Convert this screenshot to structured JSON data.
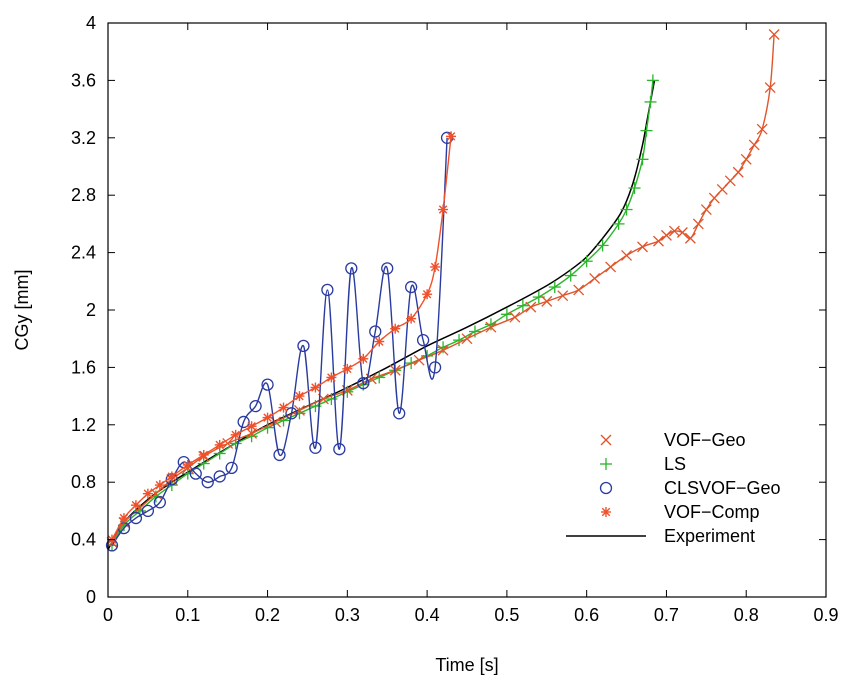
{
  "chart_data": {
    "type": "line",
    "title": "",
    "xlabel": "Time [s]",
    "ylabel": "CGy [mm]",
    "xlim": [
      0,
      0.9
    ],
    "ylim": [
      0,
      4
    ],
    "xticks": [
      "0",
      "0.1",
      "0.2",
      "0.3",
      "0.4",
      "0.5",
      "0.6",
      "0.7",
      "0.8",
      "0.9"
    ],
    "yticks": [
      "0",
      "0.4",
      "0.8",
      "1.2",
      "1.6",
      "2",
      "2.4",
      "2.8",
      "3.2",
      "3.6",
      "4"
    ],
    "grid": false,
    "legend_position": "bottom-right",
    "series": [
      {
        "name": "VOF−Geo",
        "color": "#e0552b",
        "marker": "x",
        "x": [
          0.005,
          0.02,
          0.04,
          0.06,
          0.08,
          0.1,
          0.12,
          0.15,
          0.18,
          0.21,
          0.24,
          0.27,
          0.3,
          0.33,
          0.36,
          0.39,
          0.42,
          0.45,
          0.48,
          0.51,
          0.53,
          0.55,
          0.57,
          0.59,
          0.61,
          0.63,
          0.65,
          0.67,
          0.69,
          0.7,
          0.71,
          0.72,
          0.73,
          0.74,
          0.75,
          0.76,
          0.77,
          0.78,
          0.79,
          0.8,
          0.81,
          0.82,
          0.83,
          0.835
        ],
        "y": [
          0.38,
          0.52,
          0.62,
          0.72,
          0.82,
          0.9,
          0.98,
          1.07,
          1.14,
          1.22,
          1.3,
          1.38,
          1.44,
          1.52,
          1.58,
          1.65,
          1.72,
          1.8,
          1.88,
          1.95,
          2.02,
          2.06,
          2.1,
          2.14,
          2.22,
          2.3,
          2.38,
          2.44,
          2.48,
          2.52,
          2.55,
          2.54,
          2.5,
          2.6,
          2.7,
          2.78,
          2.84,
          2.9,
          2.96,
          3.05,
          3.15,
          3.26,
          3.55,
          3.92
        ]
      },
      {
        "name": "LS",
        "color": "#2ab52a",
        "marker": "+",
        "x": [
          0.005,
          0.02,
          0.04,
          0.06,
          0.08,
          0.1,
          0.12,
          0.14,
          0.16,
          0.18,
          0.2,
          0.22,
          0.24,
          0.26,
          0.28,
          0.3,
          0.32,
          0.34,
          0.36,
          0.38,
          0.4,
          0.42,
          0.44,
          0.46,
          0.48,
          0.5,
          0.52,
          0.54,
          0.56,
          0.58,
          0.6,
          0.62,
          0.64,
          0.65,
          0.66,
          0.67,
          0.675,
          0.68,
          0.683
        ],
        "y": [
          0.36,
          0.5,
          0.6,
          0.7,
          0.78,
          0.86,
          0.93,
          1.0,
          1.07,
          1.12,
          1.18,
          1.23,
          1.28,
          1.33,
          1.38,
          1.43,
          1.48,
          1.53,
          1.58,
          1.63,
          1.68,
          1.74,
          1.79,
          1.85,
          1.9,
          1.97,
          2.03,
          2.09,
          2.16,
          2.24,
          2.34,
          2.45,
          2.6,
          2.7,
          2.85,
          3.05,
          3.25,
          3.45,
          3.6
        ]
      },
      {
        "name": "CLSVOF−Geo",
        "color": "#2a3ba0",
        "marker": "o",
        "x": [
          0.005,
          0.02,
          0.035,
          0.05,
          0.065,
          0.08,
          0.095,
          0.11,
          0.125,
          0.14,
          0.155,
          0.17,
          0.185,
          0.2,
          0.215,
          0.23,
          0.245,
          0.26,
          0.275,
          0.29,
          0.305,
          0.32,
          0.335,
          0.35,
          0.365,
          0.38,
          0.395,
          0.41,
          0.425
        ],
        "y": [
          0.36,
          0.48,
          0.55,
          0.6,
          0.66,
          0.82,
          0.94,
          0.86,
          0.8,
          0.84,
          0.9,
          1.22,
          1.33,
          1.48,
          0.99,
          1.28,
          1.75,
          1.04,
          2.14,
          1.03,
          2.29,
          1.49,
          1.85,
          2.29,
          1.28,
          2.16,
          1.79,
          1.6,
          3.2
        ]
      },
      {
        "name": "VOF−Comp",
        "color": "#f0502a",
        "marker": "*",
        "x": [
          0.005,
          0.02,
          0.035,
          0.05,
          0.065,
          0.08,
          0.1,
          0.12,
          0.14,
          0.16,
          0.18,
          0.2,
          0.22,
          0.24,
          0.26,
          0.28,
          0.3,
          0.32,
          0.34,
          0.36,
          0.38,
          0.4,
          0.41,
          0.42,
          0.43
        ],
        "y": [
          0.4,
          0.55,
          0.64,
          0.72,
          0.78,
          0.84,
          0.92,
          0.99,
          1.06,
          1.13,
          1.19,
          1.25,
          1.32,
          1.4,
          1.46,
          1.53,
          1.59,
          1.66,
          1.78,
          1.87,
          1.94,
          2.11,
          2.3,
          2.7,
          3.21
        ]
      },
      {
        "name": "Experiment",
        "color": "#000000",
        "marker": "none",
        "x": [
          0.0,
          0.02,
          0.05,
          0.08,
          0.1,
          0.15,
          0.2,
          0.25,
          0.3,
          0.35,
          0.4,
          0.45,
          0.5,
          0.55,
          0.58,
          0.6,
          0.62,
          0.64,
          0.65,
          0.66,
          0.67,
          0.675,
          0.68,
          0.685
        ],
        "y": [
          0.33,
          0.52,
          0.68,
          0.8,
          0.87,
          1.04,
          1.2,
          1.33,
          1.46,
          1.6,
          1.75,
          1.88,
          2.02,
          2.17,
          2.28,
          2.37,
          2.5,
          2.65,
          2.76,
          2.92,
          3.15,
          3.3,
          3.45,
          3.6
        ]
      }
    ]
  }
}
